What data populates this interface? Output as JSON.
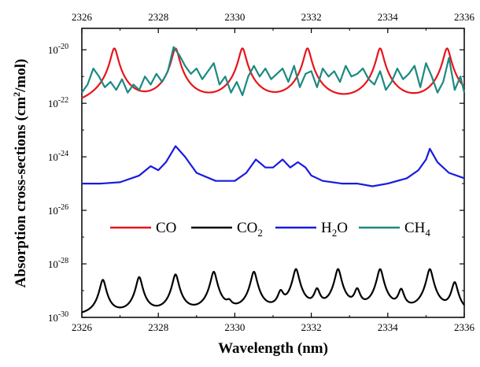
{
  "chart_data": {
    "type": "line",
    "xlabel": "Wavelength (nm)",
    "ylabel": "Absorption cross-sections (cm",
    "ylabel_sup": "2",
    "ylabel_tail": "/mol)",
    "xlim": [
      2326,
      2336
    ],
    "ylim_log10": [
      -30,
      -19.2
    ],
    "yscale": "log",
    "x_ticks": [
      "2326",
      "2328",
      "2330",
      "2332",
      "2334",
      "2336"
    ],
    "x_ticks_top": [
      "2326",
      "2328",
      "2330",
      "2332",
      "2334",
      "2336"
    ],
    "y_ticks": [
      {
        "base": "10",
        "exp": "-30",
        "log": -30
      },
      {
        "base": "10",
        "exp": "-28",
        "log": -28
      },
      {
        "base": "10",
        "exp": "-26",
        "log": -26
      },
      {
        "base": "10",
        "exp": "-24",
        "log": -24
      },
      {
        "base": "10",
        "exp": "-22",
        "log": -22
      },
      {
        "base": "10",
        "exp": "-20",
        "log": -20
      }
    ],
    "legend": {
      "placement": "center",
      "entries": [
        {
          "label": "CO",
          "sub": "",
          "color": "#e8141b"
        },
        {
          "label": "CO",
          "sub": "2",
          "color": "#000000"
        },
        {
          "label": "H",
          "sub": "2",
          "tail": "O",
          "color": "#1a1ae0"
        },
        {
          "label": "CH",
          "sub": "4",
          "color": "#1b8a80"
        }
      ]
    },
    "series": [
      {
        "name": "CO",
        "color": "#e8141b",
        "model": "lorentz_peaks",
        "peaks_x": [
          2326.85,
          2328.45,
          2330.2,
          2331.9,
          2333.8,
          2335.55
        ],
        "peak_log10": -19.95,
        "baseline_log10": -22.4,
        "halfwidth_nm": 0.08
      },
      {
        "name": "CO2",
        "color": "#000000",
        "model": "lorentz_peaks",
        "peaks_x": [
          2326.55,
          2327.5,
          2328.45,
          2329.45,
          2329.85,
          2330.5,
          2331.2,
          2331.6,
          2332.15,
          2332.7,
          2333.2,
          2333.8,
          2334.35,
          2335.1,
          2335.75
        ],
        "peak_heights_log10": [
          -28.6,
          -28.5,
          -28.4,
          -28.3,
          -29.6,
          -28.3,
          -29.1,
          -28.2,
          -29.0,
          -28.2,
          -29.0,
          -28.2,
          -29.0,
          -28.2,
          -28.7
        ],
        "baseline_log10": -30.0,
        "halfwidth_nm": 0.07
      },
      {
        "name": "H2O",
        "color": "#1a1ae0",
        "model": "points",
        "x": [
          2326.0,
          2326.5,
          2327.0,
          2327.5,
          2327.8,
          2328.0,
          2328.2,
          2328.45,
          2328.7,
          2329.0,
          2329.5,
          2330.0,
          2330.3,
          2330.55,
          2330.8,
          2331.0,
          2331.25,
          2331.45,
          2331.65,
          2331.85,
          2332.0,
          2332.3,
          2332.8,
          2333.2,
          2333.6,
          2334.0,
          2334.5,
          2334.8,
          2335.0,
          2335.1,
          2335.3,
          2335.6,
          2336.0
        ],
        "y_log10": [
          -25.0,
          -25.0,
          -24.95,
          -24.7,
          -24.35,
          -24.5,
          -24.2,
          -23.6,
          -24.0,
          -24.6,
          -24.9,
          -24.9,
          -24.6,
          -24.1,
          -24.4,
          -24.4,
          -24.1,
          -24.4,
          -24.2,
          -24.4,
          -24.7,
          -24.9,
          -25.0,
          -25.0,
          -25.1,
          -25.0,
          -24.8,
          -24.5,
          -24.1,
          -23.7,
          -24.2,
          -24.6,
          -24.8
        ]
      },
      {
        "name": "CH4",
        "color": "#1b8a80",
        "model": "points",
        "x": [
          2326.0,
          2326.15,
          2326.3,
          2326.45,
          2326.6,
          2326.75,
          2326.9,
          2327.05,
          2327.2,
          2327.35,
          2327.5,
          2327.65,
          2327.8,
          2327.95,
          2328.1,
          2328.25,
          2328.4,
          2328.55,
          2328.7,
          2328.85,
          2329.0,
          2329.15,
          2329.3,
          2329.45,
          2329.6,
          2329.75,
          2329.9,
          2330.05,
          2330.2,
          2330.35,
          2330.5,
          2330.65,
          2330.8,
          2330.95,
          2331.1,
          2331.25,
          2331.4,
          2331.55,
          2331.7,
          2331.85,
          2332.0,
          2332.15,
          2332.3,
          2332.45,
          2332.6,
          2332.75,
          2332.9,
          2333.05,
          2333.2,
          2333.35,
          2333.5,
          2333.65,
          2333.8,
          2333.95,
          2334.1,
          2334.25,
          2334.4,
          2334.55,
          2334.7,
          2334.85,
          2335.0,
          2335.15,
          2335.3,
          2335.45,
          2335.6,
          2335.75,
          2335.9,
          2336.0
        ],
        "y_log10": [
          -21.6,
          -21.3,
          -20.7,
          -21.0,
          -21.4,
          -21.2,
          -21.5,
          -21.1,
          -21.6,
          -21.3,
          -21.5,
          -21.0,
          -21.3,
          -20.9,
          -21.2,
          -20.8,
          -19.9,
          -20.2,
          -20.6,
          -20.9,
          -20.7,
          -21.1,
          -20.8,
          -20.5,
          -21.3,
          -21.0,
          -21.6,
          -21.2,
          -21.7,
          -21.0,
          -20.6,
          -21.0,
          -20.7,
          -21.1,
          -20.9,
          -20.7,
          -21.2,
          -20.6,
          -21.4,
          -20.9,
          -20.8,
          -21.4,
          -20.7,
          -21.0,
          -20.8,
          -21.2,
          -20.6,
          -21.0,
          -20.9,
          -20.7,
          -21.1,
          -21.3,
          -20.8,
          -21.5,
          -21.2,
          -20.7,
          -21.1,
          -20.9,
          -20.6,
          -21.4,
          -20.5,
          -21.0,
          -21.6,
          -21.2,
          -20.3,
          -21.5,
          -21.0,
          -21.6
        ]
      }
    ]
  }
}
